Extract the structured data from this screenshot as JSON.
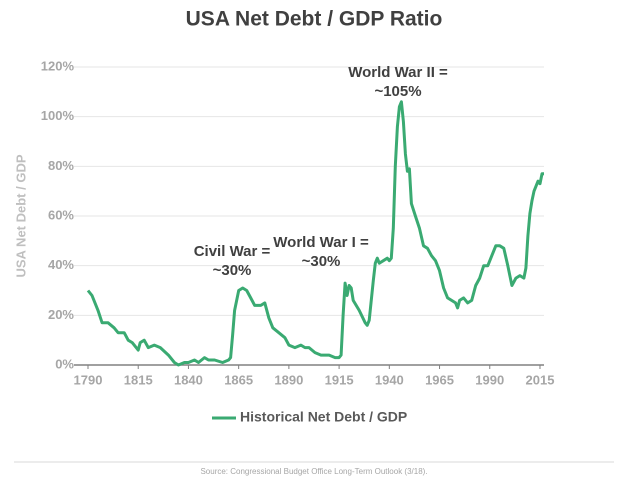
{
  "chart_data": {
    "type": "line",
    "title": "USA Net Debt / GDP Ratio",
    "y_label": "USA Net Debt / GDP",
    "source": "Source: Congressional Budget Office Long-Term Outlook (3/18).",
    "x": [
      1790,
      1792,
      1795,
      1797,
      1800,
      1803,
      1805,
      1808,
      1810,
      1812,
      1815,
      1816,
      1818,
      1820,
      1823,
      1826,
      1830,
      1833,
      1835,
      1838,
      1840,
      1843,
      1845,
      1848,
      1850,
      1853,
      1857,
      1860,
      1861,
      1862,
      1863,
      1865,
      1867,
      1869,
      1871,
      1873,
      1876,
      1878,
      1880,
      1882,
      1885,
      1888,
      1890,
      1893,
      1896,
      1898,
      1900,
      1903,
      1906,
      1910,
      1913,
      1915,
      1916,
      1917,
      1918,
      1919,
      1920,
      1921,
      1922,
      1925,
      1928,
      1929,
      1930,
      1932,
      1933,
      1934,
      1935,
      1937,
      1939,
      1940,
      1941,
      1942,
      1943,
      1944,
      1945,
      1946,
      1947,
      1948,
      1949,
      1950,
      1951,
      1953,
      1955,
      1957,
      1959,
      1961,
      1963,
      1965,
      1967,
      1969,
      1971,
      1973,
      1974,
      1975,
      1977,
      1979,
      1981,
      1983,
      1985,
      1987,
      1989,
      1991,
      1993,
      1995,
      1997,
      1999,
      2001,
      2003,
      2005,
      2007,
      2008,
      2009,
      2010,
      2011,
      2012,
      2013,
      2014,
      2015,
      2016,
      2017
    ],
    "series": [
      {
        "name": "Historical Net Debt / GDP",
        "color": "#3aaa72",
        "values": [
          30,
          28,
          22,
          17,
          17,
          15,
          13,
          13,
          10,
          9,
          6,
          9,
          10,
          7,
          8,
          7,
          4,
          1,
          0,
          1,
          1,
          2,
          1,
          3,
          2,
          2,
          1,
          2,
          3,
          12,
          22,
          30,
          31,
          30,
          27,
          24,
          24,
          25,
          19,
          15,
          13,
          11,
          8,
          7,
          8,
          7,
          7,
          5,
          4,
          4,
          3,
          3,
          4,
          20,
          33,
          28,
          32,
          31,
          26,
          22,
          17,
          16,
          18,
          34,
          41,
          43,
          41,
          42,
          43,
          42,
          43,
          55,
          80,
          96,
          104,
          106,
          98,
          85,
          78,
          79,
          65,
          60,
          55,
          48,
          47,
          44,
          42,
          38,
          31,
          27,
          26,
          25,
          23,
          26,
          27,
          25,
          26,
          32,
          35,
          40,
          40,
          44,
          48,
          48,
          47,
          40,
          32,
          35,
          36,
          35,
          39,
          52,
          61,
          66,
          70,
          72,
          74,
          73,
          77,
          77
        ]
      }
    ],
    "xlim": [
      1790,
      2017
    ],
    "xticks": [
      1790,
      1815,
      1840,
      1865,
      1890,
      1915,
      1940,
      1965,
      1990,
      2015
    ],
    "ylim": [
      0,
      120
    ],
    "yticks": [
      {
        "value": 0,
        "label": "0%"
      },
      {
        "value": 20,
        "label": "20%"
      },
      {
        "value": 40,
        "label": "40%"
      },
      {
        "value": 60,
        "label": "60%"
      },
      {
        "value": 80,
        "label": "80%"
      },
      {
        "value": 100,
        "label": "100%"
      },
      {
        "value": 120,
        "label": "120%"
      }
    ],
    "grid": true,
    "annotations": [
      {
        "lines": [
          "Civil War =",
          "~30%"
        ]
      },
      {
        "lines": [
          "World War I =",
          "~30%"
        ]
      },
      {
        "lines": [
          "World War II =",
          "~105%"
        ]
      }
    ]
  }
}
